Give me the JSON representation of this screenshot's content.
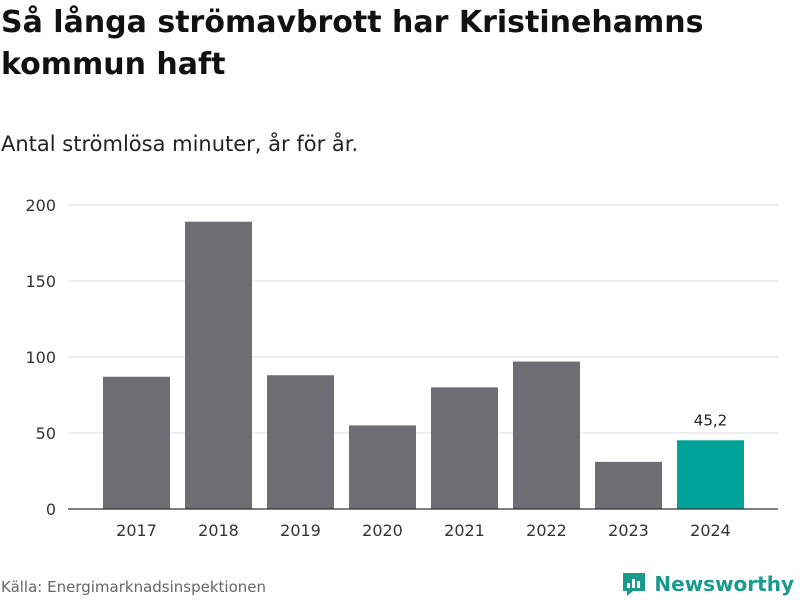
{
  "header": {
    "title": "Så långa strömavbrott har Kristinehamns kommun haft",
    "subtitle": "Antal strömlösa minuter, år för år."
  },
  "footer": {
    "source": "Källa: Energimarknadsinspektionen",
    "brand": "Newsworthy",
    "brand_icon": "newsworthy-logo-icon"
  },
  "colors": {
    "bar": "#6e6d73",
    "highlight": "#00a39a",
    "grid": "#dddddd",
    "axis": "#333333",
    "brand": "#1a9a8c"
  },
  "chart_data": {
    "type": "bar",
    "title": "Så långa strömavbrott har Kristinehamns kommun haft",
    "subtitle": "Antal strömlösa minuter, år för år.",
    "xlabel": "",
    "ylabel": "",
    "categories": [
      "2017",
      "2018",
      "2019",
      "2020",
      "2021",
      "2022",
      "2023",
      "2024"
    ],
    "values": [
      87,
      189,
      88,
      55,
      80,
      97,
      31,
      45.2
    ],
    "highlight_index": 7,
    "data_labels": [
      {
        "index": 7,
        "text": "45,2"
      }
    ],
    "ylim": [
      0,
      200
    ],
    "yticks": [
      0,
      50,
      100,
      150,
      200
    ],
    "grid": true,
    "legend": "none"
  }
}
